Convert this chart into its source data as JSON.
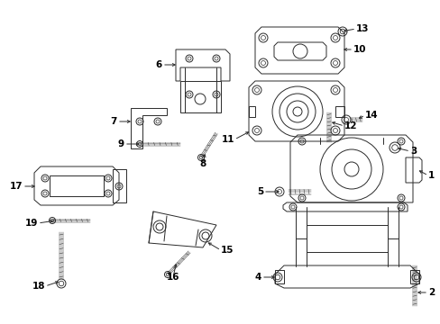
{
  "background_color": "#ffffff",
  "line_color": "#2a2a2a",
  "label_color": "#000000",
  "figsize": [
    4.89,
    3.6
  ],
  "dpi": 100,
  "label_fontsize": 7.5,
  "lw": 0.7
}
